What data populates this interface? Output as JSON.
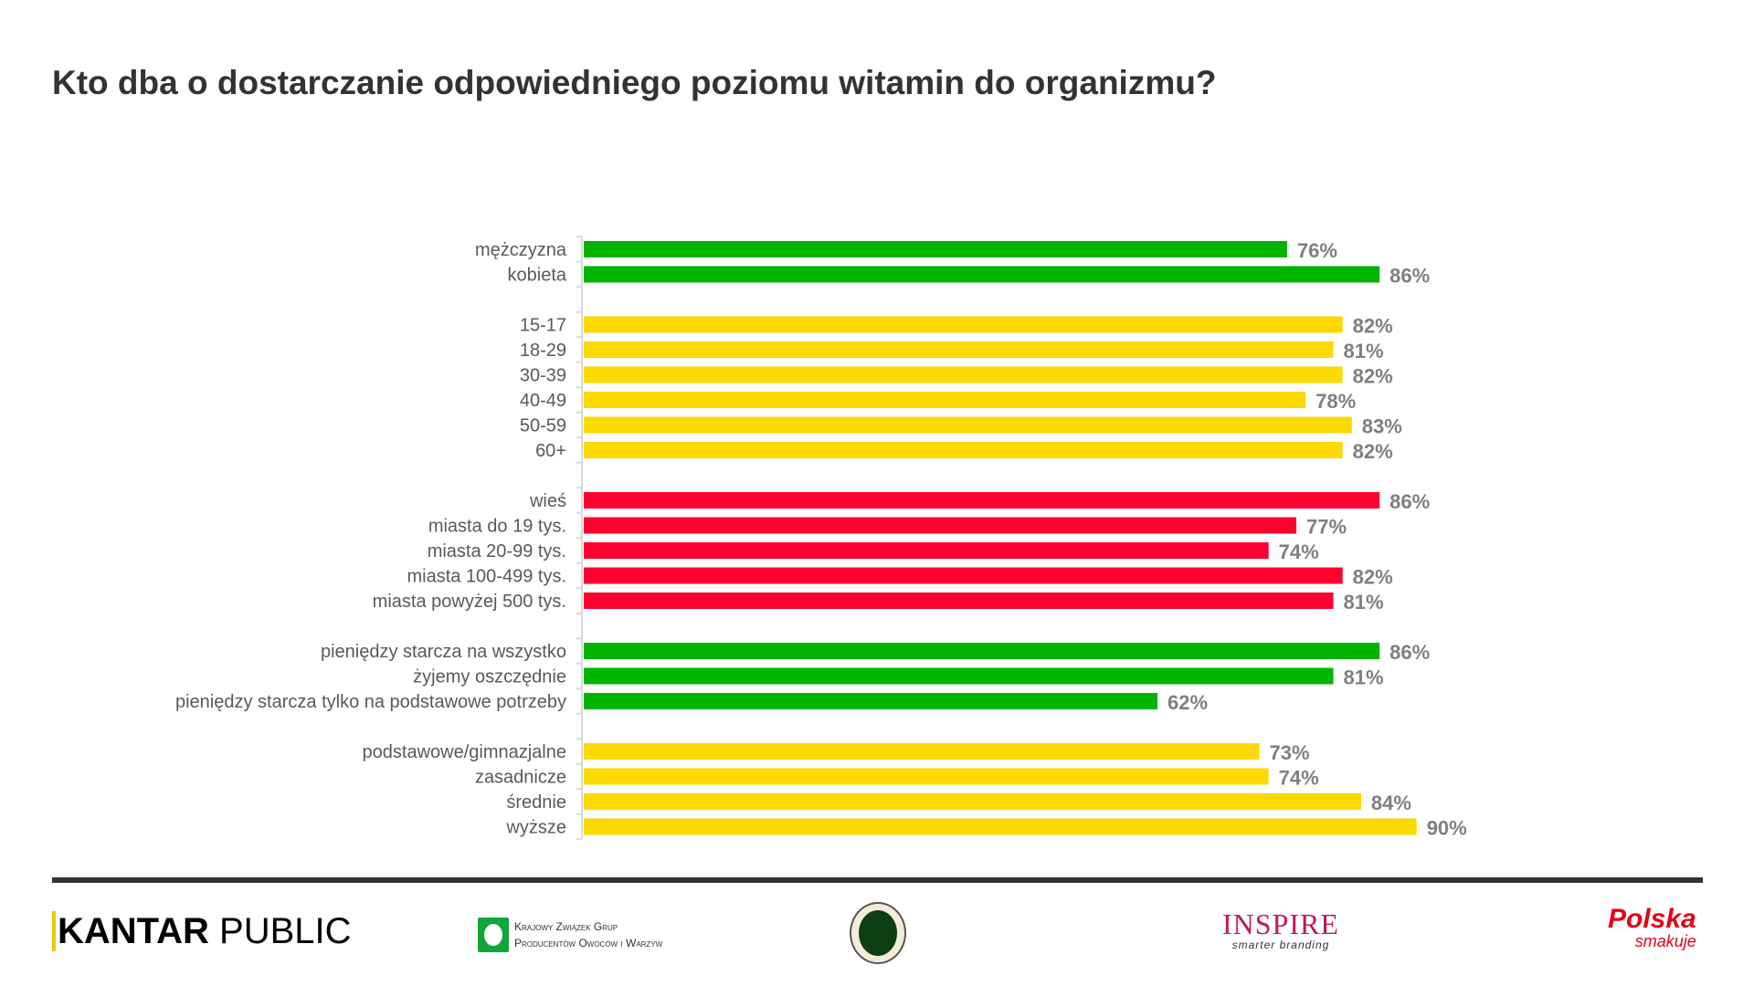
{
  "title": "Kto dba o dostarczanie odpowiedniego poziomu witamin do organizmu?",
  "chart_data": {
    "type": "bar",
    "orientation": "horizontal",
    "title": "Kto dba o dostarczanie odpowiedniego poziomu witamin do organizmu?",
    "value_suffix": "%",
    "xlim": [
      0,
      100
    ],
    "grid": false,
    "groups": [
      {
        "color": "#00b400",
        "categories": [
          "mężczyzna",
          "kobieta"
        ],
        "values": [
          76,
          86
        ]
      },
      {
        "color": "#fcd900",
        "categories": [
          "15-17",
          "18-29",
          "30-39",
          "40-49",
          "50-59",
          "60+"
        ],
        "values": [
          82,
          81,
          82,
          78,
          83,
          82
        ]
      },
      {
        "color": "#ff0030",
        "categories": [
          "wieś",
          "miasta do 19 tys.",
          "miasta 20-99 tys.",
          "miasta 100-499 tys.",
          "miasta powyżej 500 tys."
        ],
        "values": [
          86,
          77,
          74,
          82,
          81
        ]
      },
      {
        "color": "#00b400",
        "categories": [
          "pieniędzy starcza na wszystko",
          "żyjemy oszczędnie",
          "pieniędzy starcza tylko na podstawowe potrzeby"
        ],
        "values": [
          86,
          81,
          62
        ]
      },
      {
        "color": "#fcd900",
        "categories": [
          "podstawowe/gimnazjalne",
          "zasadnicze",
          "średnie",
          "wyższe"
        ],
        "values": [
          73,
          74,
          84,
          90
        ]
      }
    ]
  },
  "footer": {
    "logos": {
      "kantar_a": "KANTAR",
      "kantar_b": "PUBLIC",
      "kzgp_line1": "Krajowy Związek Grup",
      "kzgp_line2": "Producentów Owoców i Warzyw",
      "inspire": "INSPIRE",
      "inspire_tag": "smarter branding",
      "polska": "Polska",
      "polska_tag": "smakuje"
    }
  }
}
